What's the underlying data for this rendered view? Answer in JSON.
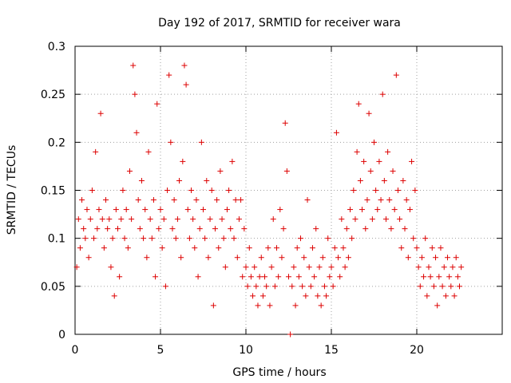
{
  "chart_data": {
    "type": "scatter",
    "title": "Day 192 of 2017, SRMTID for receiver wara",
    "xlabel": "GPS time / hours",
    "ylabel": "SRMTID / TECUs",
    "xlim": [
      0,
      25
    ],
    "ylim": [
      0,
      0.3
    ],
    "x_ticks": [
      0,
      5,
      10,
      15,
      20
    ],
    "x_tick_labels": [
      "0",
      "5",
      "10",
      "15",
      "20"
    ],
    "y_ticks": [
      0,
      0.05,
      0.1,
      0.15,
      0.2,
      0.25,
      0.3
    ],
    "y_tick_labels": [
      "0",
      "0.05",
      "0.1",
      "0.15",
      "0.2",
      "0.25",
      "0.3"
    ],
    "grid": true,
    "marker": "plus",
    "series_color": "#dd0000",
    "series": [
      {
        "name": "SRMTID",
        "points": [
          [
            0.1,
            0.07
          ],
          [
            0.2,
            0.12
          ],
          [
            0.3,
            0.09
          ],
          [
            0.4,
            0.14
          ],
          [
            0.5,
            0.11
          ],
          [
            0.6,
            0.1
          ],
          [
            0.7,
            0.13
          ],
          [
            0.8,
            0.08
          ],
          [
            0.9,
            0.12
          ],
          [
            1.0,
            0.15
          ],
          [
            1.1,
            0.1
          ],
          [
            1.2,
            0.19
          ],
          [
            1.3,
            0.11
          ],
          [
            1.4,
            0.13
          ],
          [
            1.5,
            0.23
          ],
          [
            1.6,
            0.12
          ],
          [
            1.7,
            0.09
          ],
          [
            1.8,
            0.14
          ],
          [
            1.9,
            0.11
          ],
          [
            2.0,
            0.12
          ],
          [
            2.1,
            0.07
          ],
          [
            2.2,
            0.1
          ],
          [
            2.3,
            0.04
          ],
          [
            2.4,
            0.13
          ],
          [
            2.5,
            0.11
          ],
          [
            2.6,
            0.06
          ],
          [
            2.7,
            0.12
          ],
          [
            2.8,
            0.15
          ],
          [
            2.9,
            0.1
          ],
          [
            3.0,
            0.13
          ],
          [
            3.1,
            0.09
          ],
          [
            3.2,
            0.17
          ],
          [
            3.3,
            0.12
          ],
          [
            3.4,
            0.28
          ],
          [
            3.5,
            0.25
          ],
          [
            3.6,
            0.21
          ],
          [
            3.7,
            0.14
          ],
          [
            3.8,
            0.11
          ],
          [
            3.9,
            0.16
          ],
          [
            4.0,
            0.1
          ],
          [
            4.1,
            0.13
          ],
          [
            4.2,
            0.08
          ],
          [
            4.3,
            0.19
          ],
          [
            4.4,
            0.12
          ],
          [
            4.5,
            0.1
          ],
          [
            4.6,
            0.14
          ],
          [
            4.7,
            0.06
          ],
          [
            4.8,
            0.24
          ],
          [
            4.9,
            0.11
          ],
          [
            5.0,
            0.13
          ],
          [
            5.1,
            0.09
          ],
          [
            5.2,
            0.12
          ],
          [
            5.3,
            0.05
          ],
          [
            5.4,
            0.15
          ],
          [
            5.5,
            0.27
          ],
          [
            5.6,
            0.2
          ],
          [
            5.7,
            0.11
          ],
          [
            5.8,
            0.14
          ],
          [
            5.9,
            0.1
          ],
          [
            6.0,
            0.12
          ],
          [
            6.1,
            0.16
          ],
          [
            6.2,
            0.08
          ],
          [
            6.3,
            0.18
          ],
          [
            6.4,
            0.28
          ],
          [
            6.5,
            0.26
          ],
          [
            6.6,
            0.13
          ],
          [
            6.7,
            0.1
          ],
          [
            6.8,
            0.15
          ],
          [
            6.9,
            0.12
          ],
          [
            7.0,
            0.09
          ],
          [
            7.1,
            0.14
          ],
          [
            7.2,
            0.06
          ],
          [
            7.3,
            0.11
          ],
          [
            7.4,
            0.2
          ],
          [
            7.5,
            0.13
          ],
          [
            7.6,
            0.1
          ],
          [
            7.7,
            0.16
          ],
          [
            7.8,
            0.08
          ],
          [
            7.9,
            0.12
          ],
          [
            8.0,
            0.15
          ],
          [
            8.1,
            0.03
          ],
          [
            8.2,
            0.11
          ],
          [
            8.3,
            0.14
          ],
          [
            8.4,
            0.09
          ],
          [
            8.5,
            0.17
          ],
          [
            8.6,
            0.12
          ],
          [
            8.7,
            0.1
          ],
          [
            8.8,
            0.07
          ],
          [
            8.9,
            0.13
          ],
          [
            9.0,
            0.15
          ],
          [
            9.1,
            0.11
          ],
          [
            9.2,
            0.18
          ],
          [
            9.3,
            0.1
          ],
          [
            9.4,
            0.14
          ],
          [
            9.5,
            0.08
          ],
          [
            9.6,
            0.12
          ],
          [
            9.7,
            0.14
          ],
          [
            9.8,
            0.06
          ],
          [
            9.9,
            0.11
          ],
          [
            10.0,
            0.07
          ],
          [
            10.1,
            0.05
          ],
          [
            10.2,
            0.09
          ],
          [
            10.3,
            0.06
          ],
          [
            10.4,
            0.04
          ],
          [
            10.5,
            0.07
          ],
          [
            10.6,
            0.05
          ],
          [
            10.7,
            0.03
          ],
          [
            10.8,
            0.06
          ],
          [
            10.9,
            0.08
          ],
          [
            11.0,
            0.04
          ],
          [
            11.1,
            0.06
          ],
          [
            11.2,
            0.05
          ],
          [
            11.3,
            0.09
          ],
          [
            11.4,
            0.03
          ],
          [
            11.5,
            0.07
          ],
          [
            11.6,
            0.12
          ],
          [
            11.7,
            0.05
          ],
          [
            11.8,
            0.09
          ],
          [
            11.9,
            0.06
          ],
          [
            12.0,
            0.13
          ],
          [
            12.1,
            0.08
          ],
          [
            12.2,
            0.11
          ],
          [
            12.3,
            0.22
          ],
          [
            12.4,
            0.17
          ],
          [
            12.5,
            0.06
          ],
          [
            12.6,
            0.0
          ],
          [
            12.7,
            0.05
          ],
          [
            12.8,
            0.07
          ],
          [
            12.9,
            0.03
          ],
          [
            13.0,
            0.09
          ],
          [
            13.1,
            0.06
          ],
          [
            13.2,
            0.1
          ],
          [
            13.3,
            0.05
          ],
          [
            13.4,
            0.08
          ],
          [
            13.5,
            0.04
          ],
          [
            13.6,
            0.14
          ],
          [
            13.7,
            0.07
          ],
          [
            13.8,
            0.05
          ],
          [
            13.9,
            0.09
          ],
          [
            14.0,
            0.06
          ],
          [
            14.1,
            0.11
          ],
          [
            14.2,
            0.04
          ],
          [
            14.3,
            0.07
          ],
          [
            14.4,
            0.03
          ],
          [
            14.5,
            0.08
          ],
          [
            14.6,
            0.05
          ],
          [
            14.7,
            0.04
          ],
          [
            14.8,
            0.1
          ],
          [
            14.9,
            0.06
          ],
          [
            15.0,
            0.07
          ],
          [
            15.1,
            0.05
          ],
          [
            15.2,
            0.09
          ],
          [
            15.3,
            0.21
          ],
          [
            15.4,
            0.08
          ],
          [
            15.5,
            0.06
          ],
          [
            15.6,
            0.12
          ],
          [
            15.7,
            0.09
          ],
          [
            15.8,
            0.07
          ],
          [
            15.9,
            0.11
          ],
          [
            16.0,
            0.08
          ],
          [
            16.1,
            0.13
          ],
          [
            16.2,
            0.1
          ],
          [
            16.3,
            0.15
          ],
          [
            16.4,
            0.12
          ],
          [
            16.5,
            0.19
          ],
          [
            16.6,
            0.24
          ],
          [
            16.7,
            0.16
          ],
          [
            16.8,
            0.13
          ],
          [
            16.9,
            0.18
          ],
          [
            17.0,
            0.11
          ],
          [
            17.1,
            0.14
          ],
          [
            17.2,
            0.23
          ],
          [
            17.3,
            0.17
          ],
          [
            17.4,
            0.12
          ],
          [
            17.5,
            0.2
          ],
          [
            17.6,
            0.15
          ],
          [
            17.7,
            0.13
          ],
          [
            17.8,
            0.18
          ],
          [
            17.9,
            0.14
          ],
          [
            18.0,
            0.25
          ],
          [
            18.1,
            0.16
          ],
          [
            18.2,
            0.12
          ],
          [
            18.3,
            0.19
          ],
          [
            18.4,
            0.14
          ],
          [
            18.5,
            0.11
          ],
          [
            18.6,
            0.17
          ],
          [
            18.7,
            0.13
          ],
          [
            18.8,
            0.27
          ],
          [
            18.9,
            0.15
          ],
          [
            19.0,
            0.12
          ],
          [
            19.1,
            0.09
          ],
          [
            19.2,
            0.16
          ],
          [
            19.3,
            0.11
          ],
          [
            19.4,
            0.14
          ],
          [
            19.5,
            0.08
          ],
          [
            19.6,
            0.13
          ],
          [
            19.7,
            0.18
          ],
          [
            19.8,
            0.1
          ],
          [
            19.9,
            0.15
          ],
          [
            20.0,
            0.09
          ],
          [
            20.1,
            0.07
          ],
          [
            20.2,
            0.05
          ],
          [
            20.3,
            0.08
          ],
          [
            20.4,
            0.06
          ],
          [
            20.5,
            0.1
          ],
          [
            20.6,
            0.04
          ],
          [
            20.7,
            0.07
          ],
          [
            20.8,
            0.06
          ],
          [
            20.9,
            0.09
          ],
          [
            21.0,
            0.05
          ],
          [
            21.1,
            0.08
          ],
          [
            21.2,
            0.03
          ],
          [
            21.3,
            0.06
          ],
          [
            21.4,
            0.09
          ],
          [
            21.5,
            0.05
          ],
          [
            21.6,
            0.07
          ],
          [
            21.7,
            0.04
          ],
          [
            21.8,
            0.08
          ],
          [
            21.9,
            0.06
          ],
          [
            22.0,
            0.05
          ],
          [
            22.1,
            0.07
          ],
          [
            22.2,
            0.04
          ],
          [
            22.3,
            0.08
          ],
          [
            22.4,
            0.06
          ],
          [
            22.5,
            0.05
          ],
          [
            22.6,
            0.07
          ]
        ]
      }
    ]
  }
}
